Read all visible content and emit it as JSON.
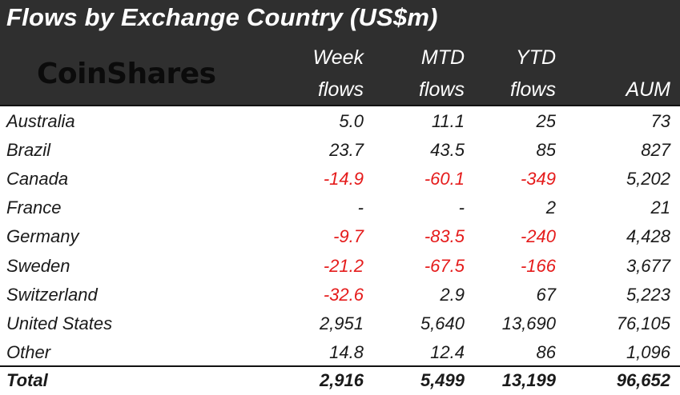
{
  "title": "Flows by Exchange Country (US$m)",
  "logo": "CoinShares",
  "columns": {
    "week": [
      "Week",
      "flows"
    ],
    "mtd": [
      "MTD",
      "flows"
    ],
    "ytd": [
      "YTD",
      "flows"
    ],
    "aum": "AUM"
  },
  "rows": [
    {
      "country": "Australia",
      "week": "5.0",
      "mtd": "11.1",
      "ytd": "25",
      "aum": "73"
    },
    {
      "country": "Brazil",
      "week": "23.7",
      "mtd": "43.5",
      "ytd": "85",
      "aum": "827"
    },
    {
      "country": "Canada",
      "week": "-14.9",
      "mtd": "-60.1",
      "ytd": "-349",
      "aum": "5,202"
    },
    {
      "country": "France",
      "week": "-",
      "mtd": "-",
      "ytd": "2",
      "aum": "21"
    },
    {
      "country": "Germany",
      "week": "-9.7",
      "mtd": "-83.5",
      "ytd": "-240",
      "aum": "4,428"
    },
    {
      "country": "Sweden",
      "week": "-21.2",
      "mtd": "-67.5",
      "ytd": "-166",
      "aum": "3,677"
    },
    {
      "country": "Switzerland",
      "week": "-32.6",
      "mtd": "2.9",
      "ytd": "67",
      "aum": "5,223"
    },
    {
      "country": "United States",
      "week": "2,951",
      "mtd": "5,640",
      "ytd": "13,690",
      "aum": "76,105"
    },
    {
      "country": "Other",
      "week": "14.8",
      "mtd": "12.4",
      "ytd": "86",
      "aum": "1,096"
    }
  ],
  "total": {
    "country": "Total",
    "week": "2,916",
    "mtd": "5,499",
    "ytd": "13,199",
    "aum": "96,652"
  },
  "colors": {
    "header_bg": "#2f2f2f",
    "negative": "#e51b1b",
    "text": "#1a1a1a"
  }
}
